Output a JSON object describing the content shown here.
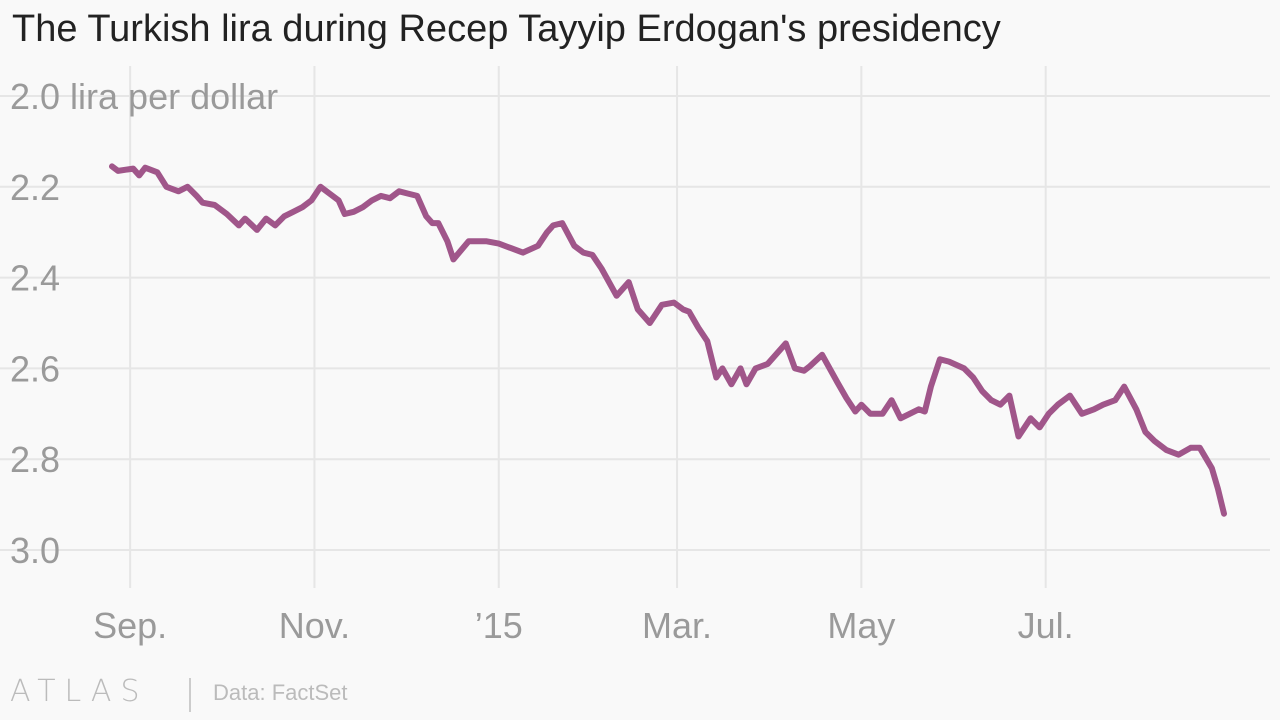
{
  "title": "The Turkish lira during Recep Tayyip Erdogan's presidency",
  "footer": {
    "logo": "ATLAS",
    "source": "Data: FactSet"
  },
  "colors": {
    "line": "#a0568a",
    "grid": "#e6e6e6",
    "tick": "#9a9a9a"
  },
  "chart_data": {
    "type": "line",
    "ylabel_unit": "lira per dollar",
    "y_inverted": true,
    "ylim": [
      2.0,
      3.0
    ],
    "y_ticks": [
      2.0,
      2.2,
      2.4,
      2.6,
      2.8,
      3.0
    ],
    "y_tick_labels": [
      "2.0 lira per dollar",
      "2.2",
      "2.4",
      "2.6",
      "2.8",
      "3.0"
    ],
    "x_ticks": [
      "2014-09-01",
      "2014-11-01",
      "2015-01-01",
      "2015-03-01",
      "2015-05-01",
      "2015-07-01"
    ],
    "x_tick_labels": [
      "Sep.",
      "Nov.",
      "’15",
      "Mar.",
      "May",
      "Jul."
    ],
    "xlim": [
      "2014-08-26",
      "2015-08-31"
    ],
    "grid": true,
    "series": [
      {
        "x": [
          "2014-08-26",
          "2014-08-28",
          "2014-09-02",
          "2014-09-04",
          "2014-09-06",
          "2014-09-10",
          "2014-09-13",
          "2014-09-17",
          "2014-09-20",
          "2014-09-23",
          "2014-09-25",
          "2014-09-29",
          "2014-10-03",
          "2014-10-07",
          "2014-10-09",
          "2014-10-13",
          "2014-10-16",
          "2014-10-19",
          "2014-10-22",
          "2014-10-25",
          "2014-10-28",
          "2014-10-31",
          "2014-11-03",
          "2014-11-06",
          "2014-11-09",
          "2014-11-11",
          "2014-11-14",
          "2014-11-17",
          "2014-11-20",
          "2014-11-23",
          "2014-11-26",
          "2014-11-29",
          "2014-12-02",
          "2014-12-05",
          "2014-12-08",
          "2014-12-10",
          "2014-12-12",
          "2014-12-15",
          "2014-12-17",
          "2014-12-22",
          "2014-12-28",
          "2015-01-01",
          "2015-01-05",
          "2015-01-09",
          "2015-01-14",
          "2015-01-17",
          "2015-01-19",
          "2015-01-22",
          "2015-01-26",
          "2015-01-29",
          "2015-02-01",
          "2015-02-04",
          "2015-02-09",
          "2015-02-13",
          "2015-02-16",
          "2015-02-20",
          "2015-02-24",
          "2015-02-28",
          "2015-03-03",
          "2015-03-05",
          "2015-03-08",
          "2015-03-11",
          "2015-03-14",
          "2015-03-16",
          "2015-03-19",
          "2015-03-22",
          "2015-03-24",
          "2015-03-27",
          "2015-03-31",
          "2015-04-06",
          "2015-04-09",
          "2015-04-12",
          "2015-04-14",
          "2015-04-18",
          "2015-04-23",
          "2015-04-26",
          "2015-04-29",
          "2015-05-01",
          "2015-05-04",
          "2015-05-08",
          "2015-05-11",
          "2015-05-14",
          "2015-05-17",
          "2015-05-20",
          "2015-05-22",
          "2015-05-24",
          "2015-05-27",
          "2015-05-30",
          "2015-06-04",
          "2015-06-07",
          "2015-06-10",
          "2015-06-13",
          "2015-06-16",
          "2015-06-19",
          "2015-06-22",
          "2015-06-26",
          "2015-06-29",
          "2015-07-02",
          "2015-07-05",
          "2015-07-09",
          "2015-07-13",
          "2015-07-17",
          "2015-07-20",
          "2015-07-24",
          "2015-07-27",
          "2015-07-31",
          "2015-08-03",
          "2015-08-06",
          "2015-08-10",
          "2015-08-14",
          "2015-08-18",
          "2015-08-21",
          "2015-08-25",
          "2015-08-27",
          "2015-08-29"
        ],
        "values": [
          2.155,
          2.165,
          2.16,
          2.175,
          2.158,
          2.168,
          2.2,
          2.21,
          2.2,
          2.22,
          2.235,
          2.24,
          2.26,
          2.285,
          2.27,
          2.295,
          2.27,
          2.285,
          2.265,
          2.255,
          2.245,
          2.23,
          2.2,
          2.215,
          2.23,
          2.26,
          2.255,
          2.245,
          2.23,
          2.22,
          2.225,
          2.21,
          2.215,
          2.22,
          2.265,
          2.28,
          2.28,
          2.32,
          2.36,
          2.32,
          2.32,
          2.325,
          2.335,
          2.345,
          2.33,
          2.3,
          2.285,
          2.28,
          2.33,
          2.345,
          2.35,
          2.38,
          2.44,
          2.41,
          2.47,
          2.5,
          2.46,
          2.455,
          2.47,
          2.475,
          2.51,
          2.54,
          2.62,
          2.6,
          2.635,
          2.6,
          2.635,
          2.6,
          2.59,
          2.545,
          2.6,
          2.605,
          2.595,
          2.57,
          2.63,
          2.665,
          2.695,
          2.68,
          2.7,
          2.7,
          2.67,
          2.71,
          2.7,
          2.69,
          2.695,
          2.64,
          2.58,
          2.585,
          2.6,
          2.62,
          2.65,
          2.67,
          2.68,
          2.66,
          2.75,
          2.71,
          2.73,
          2.7,
          2.68,
          2.66,
          2.7,
          2.69,
          2.68,
          2.67,
          2.64,
          2.69,
          2.74,
          2.76,
          2.78,
          2.79,
          2.775,
          2.775,
          2.82,
          2.865,
          2.92
        ]
      }
    ]
  }
}
